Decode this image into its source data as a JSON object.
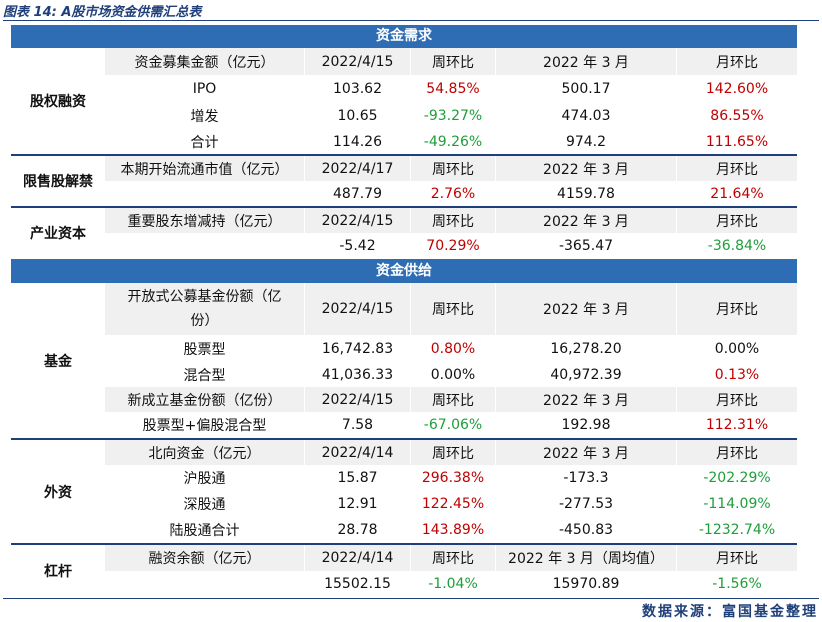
{
  "caption": "图表 14: A股市场资金供需汇总表",
  "source": "数据来源：富国基金整理",
  "sections": {
    "demand": "资金需求",
    "supply": "资金供给"
  },
  "groups": {
    "equity": "股权融资",
    "lockup": "限售股解禁",
    "industry": "产业资本",
    "fund": "基金",
    "foreign": "外资",
    "leverage": "杠杆"
  },
  "rows": [
    [
      "资金募集金额（亿元）",
      "2022/4/15",
      "周环比",
      "2022 年 3 月",
      "月环比"
    ],
    [
      "IPO",
      "103.62",
      "54.85%",
      "500.17",
      "142.60%"
    ],
    [
      "增发",
      "10.65",
      "-93.27%",
      "474.03",
      "86.55%"
    ],
    [
      "合计",
      "114.26",
      "-49.26%",
      "974.2",
      "111.65%"
    ],
    [
      "本期开始流通市值（亿元）",
      "2022/4/17",
      "周环比",
      "2022 年 3 月",
      "月环比"
    ],
    [
      "",
      "487.79",
      "2.76%",
      "4159.78",
      "21.64%"
    ],
    [
      "重要股东增减持（亿元）",
      "2022/4/15",
      "周环比",
      "2022 年 3 月",
      "月环比"
    ],
    [
      "",
      "-5.42",
      "70.29%",
      "-365.47",
      "-36.84%"
    ],
    [
      "开放式公募基金份额（亿份）",
      "2022/4/15",
      "周环比",
      "2022 年 3 月",
      "月环比"
    ],
    [
      "股票型",
      "16,742.83",
      "0.80%",
      "16,278.20",
      "0.00%"
    ],
    [
      "混合型",
      "41,036.33",
      "0.00%",
      "40,972.39",
      "0.13%"
    ],
    [
      "新成立基金份额（亿份）",
      "2022/4/15",
      "周环比",
      "2022 年 3 月",
      "月环比"
    ],
    [
      "股票型+偏股混合型",
      "7.58",
      "-67.06%",
      "192.98",
      "112.31%"
    ],
    [
      "北向资金（亿元）",
      "2022/4/14",
      "周环比",
      "2022 年 3 月",
      "月环比"
    ],
    [
      "沪股通",
      "15.87",
      "296.38%",
      "-173.3",
      "-202.29%"
    ],
    [
      "深股通",
      "12.91",
      "122.45%",
      "-277.53",
      "-114.09%"
    ],
    [
      "陆股通合计",
      "28.78",
      "143.89%",
      "-450.83",
      "-1232.74%"
    ],
    [
      "融资余额（亿元）",
      "2022/4/14",
      "周环比",
      "2022 年 3 月（周均值）",
      "月环比"
    ],
    [
      "",
      "15502.15",
      "-1.04%",
      "15970.89",
      "-1.56%"
    ]
  ],
  "colors": {
    "header_blue": "#2e6db4",
    "rule_navy": "#1f3f7a",
    "positive_red": "#c00000",
    "negative_green": "#1e9e3a",
    "shade": "#f0f0f0"
  }
}
